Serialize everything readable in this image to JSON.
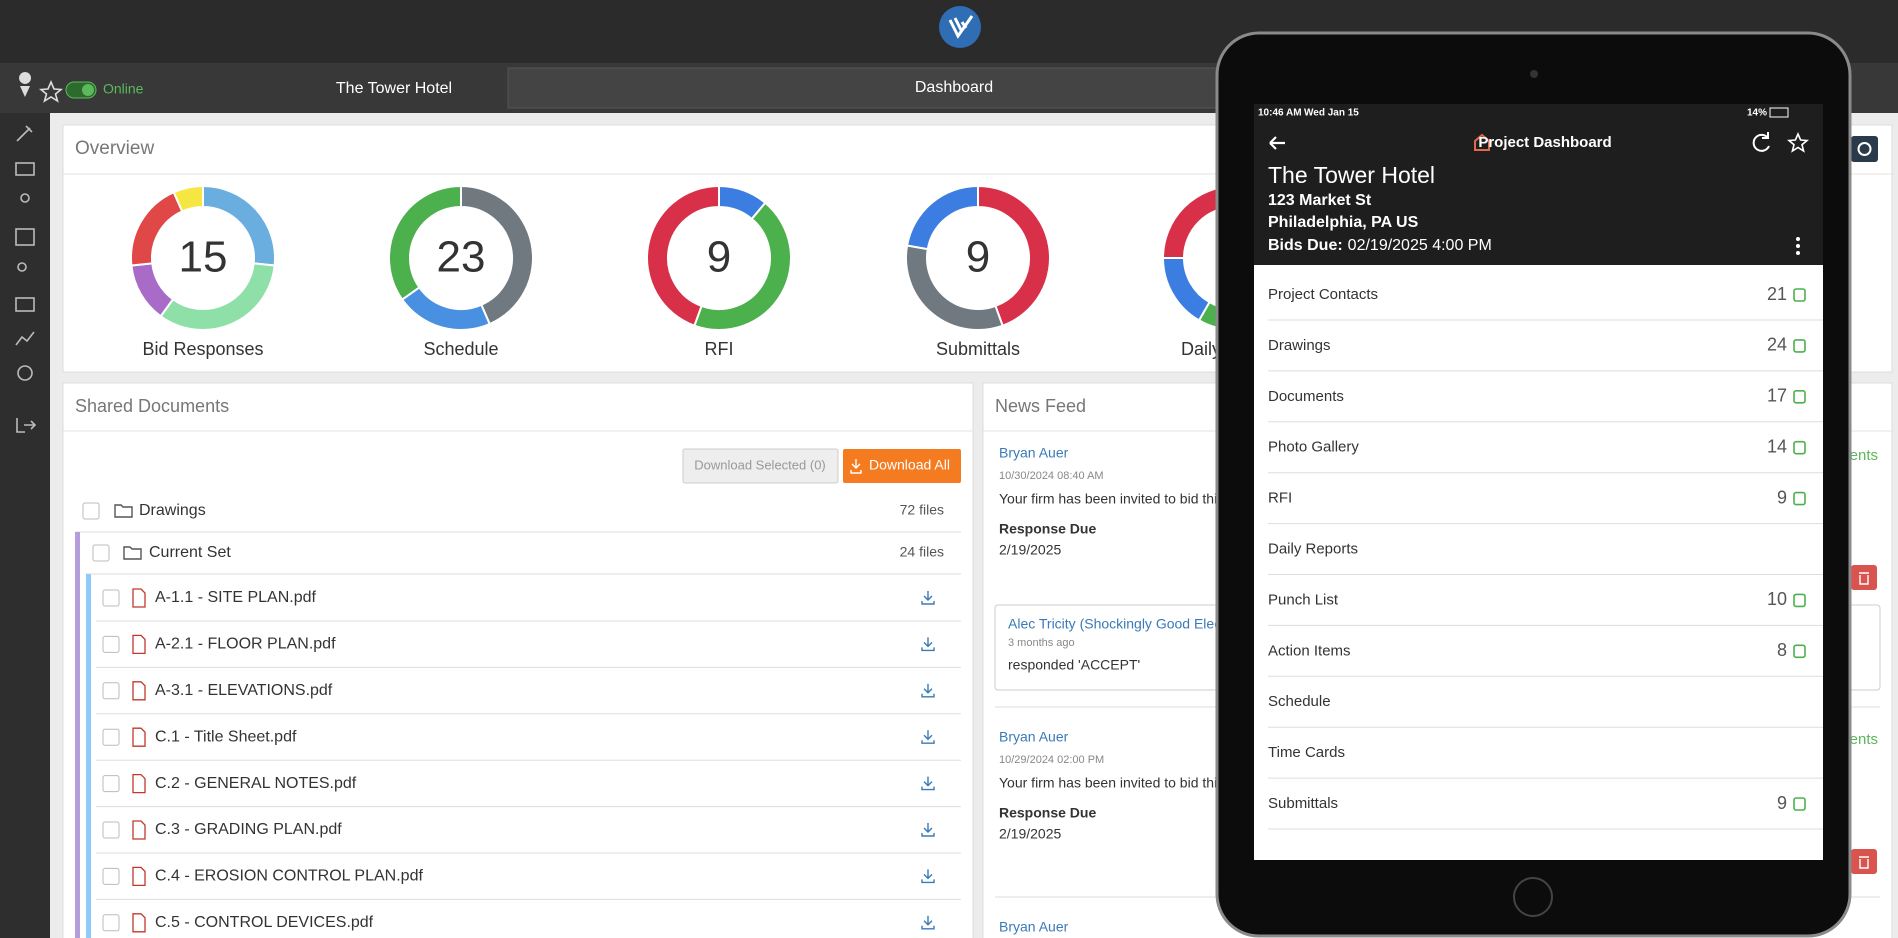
{
  "toolbar": {
    "status": "Online",
    "project": "The Tower Hotel",
    "tab": "Dashboard"
  },
  "overview": {
    "title": "Overview",
    "donuts": [
      {
        "label": "Bid Responses",
        "total": "15",
        "segments": [
          {
            "color": "#6aaee0",
            "value": 4
          },
          {
            "color": "#8ee0a8",
            "value": 5
          },
          {
            "color": "#a86cc8",
            "value": 2
          },
          {
            "color": "#e04848",
            "value": 3
          },
          {
            "color": "#f5e642",
            "value": 1
          }
        ]
      },
      {
        "label": "Schedule",
        "total": "23",
        "segments": [
          {
            "color": "#707880",
            "value": 10
          },
          {
            "color": "#4a90e2",
            "value": 5
          },
          {
            "color": "#4cb04c",
            "value": 8
          }
        ]
      },
      {
        "label": "RFI",
        "total": "9",
        "segments": [
          {
            "color": "#3b7de0",
            "value": 1
          },
          {
            "color": "#4cb04c",
            "value": 4
          },
          {
            "color": "#d9304a",
            "value": 4
          }
        ]
      },
      {
        "label": "Submittals",
        "total": "9",
        "segments": [
          {
            "color": "#d9304a",
            "value": 4
          },
          {
            "color": "#707880",
            "value": 3
          },
          {
            "color": "#3b7de0",
            "value": 2
          }
        ]
      },
      {
        "label": "Daily Reports",
        "segments": [
          {
            "color": "#4cb04c",
            "value": 7
          },
          {
            "color": "#3b7de0",
            "value": 2
          },
          {
            "color": "#d9304a",
            "value": 3
          }
        ]
      }
    ]
  },
  "shared_documents": {
    "title": "Shared Documents",
    "buttons": [
      "Download Selected (0)",
      "Download All"
    ],
    "folder": {
      "name": "Drawings",
      "count": "72 files",
      "subfolder": {
        "name": "Current Set",
        "count": "24 files",
        "files": [
          "A-1.1 - SITE PLAN.pdf",
          "A-2.1 - FLOOR PLAN.pdf",
          "A-3.1 - ELEVATIONS.pdf",
          "C.1 - Title Sheet.pdf",
          "C.2 - GENERAL NOTES.pdf",
          "C.3 - GRADING PLAN.pdf",
          "C.4 - EROSION CONTROL PLAN.pdf",
          "C.5 - CONTROL DEVICES.pdf"
        ]
      }
    }
  },
  "news_feed": {
    "title": "News Feed",
    "side_link": "Recipients",
    "items": [
      {
        "author": "Bryan Auer",
        "date": "10/30/2024 08:40 AM",
        "text": "Your firm has been invited to bid this project.",
        "due_label": "Response Due",
        "due": "2/19/2025",
        "reply": {
          "author": "Alec Tricity (Shockingly Good Electric)",
          "time": "3 months ago",
          "text": "responded 'ACCEPT'"
        }
      },
      {
        "author": "Bryan Auer",
        "date": "10/29/2024 02:00 PM",
        "text": "Your firm has been invited to bid this project.",
        "due_label": "Response Due",
        "due": "2/19/2025"
      },
      {
        "author": "Bryan Auer"
      }
    ]
  },
  "tablet": {
    "time": "10:46 AM",
    "date": "Wed Jan 15",
    "battery": "14%",
    "title": "Project Dashboard",
    "project": "The Tower Hotel",
    "address": "123 Market St",
    "city": "Philadelphia, PA US",
    "bids_label": "Bids Due:",
    "bids_due": "02/19/2025 4:00 PM",
    "menu": [
      {
        "label": "Project Contacts",
        "count": "21"
      },
      {
        "label": "Drawings",
        "count": "24"
      },
      {
        "label": "Documents",
        "count": "17"
      },
      {
        "label": "Photo Gallery",
        "count": "14"
      },
      {
        "label": "RFI",
        "count": "9"
      },
      {
        "label": "Daily Reports"
      },
      {
        "label": "Punch List",
        "count": "10"
      },
      {
        "label": "Action Items",
        "count": "8"
      },
      {
        "label": "Schedule"
      },
      {
        "label": "Time Cards"
      },
      {
        "label": "Submittals",
        "count": "9"
      }
    ]
  }
}
